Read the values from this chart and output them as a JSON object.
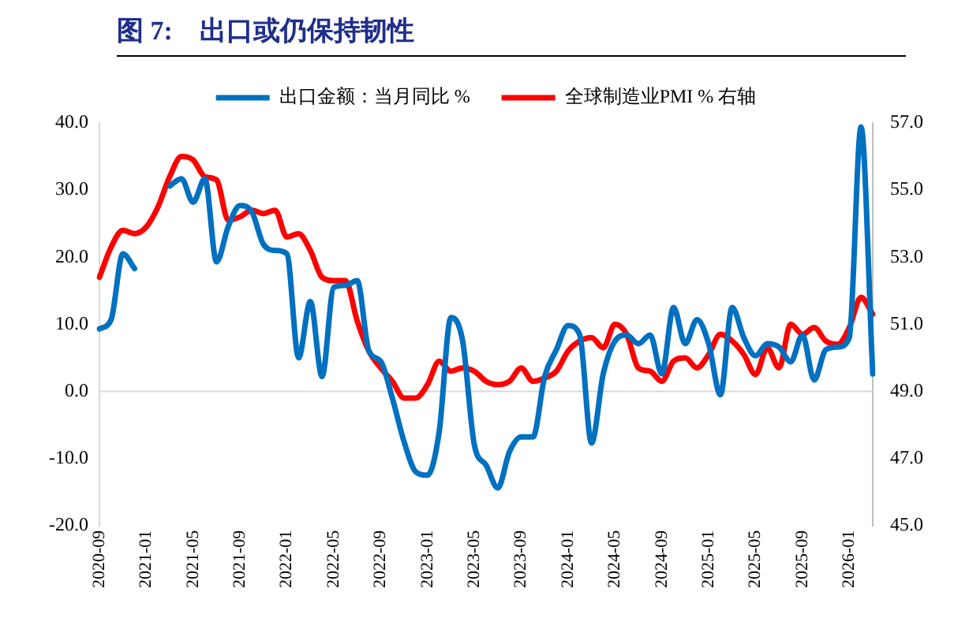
{
  "chart_data": {
    "type": "line",
    "title": "图 7:    出口或仍保持韧性",
    "categories": [
      "2020-09",
      null,
      null,
      null,
      "2021-01",
      null,
      null,
      null,
      "2021-05",
      null,
      null,
      null,
      "2021-09",
      null,
      null,
      null,
      "2022-01",
      null,
      null,
      null,
      "2022-05",
      null,
      null,
      null,
      "2022-09",
      null,
      null,
      null,
      "2023-01",
      null,
      null,
      null,
      "2023-05",
      null,
      null,
      null,
      "2023-09",
      null,
      null,
      null,
      "2024-01",
      null,
      null,
      null,
      "2024-05",
      null,
      null,
      null,
      "2024-09",
      null,
      null,
      null,
      "2025-01",
      null,
      null,
      null,
      "2025-05",
      null,
      null,
      null,
      "2025-09",
      null,
      null,
      null,
      "2026-01",
      null,
      null
    ],
    "series": [
      {
        "name": "出口金额：当月同比 %",
        "color": "#0070c0",
        "values": [
          9.3,
          10.7,
          20.5,
          18.3,
          null,
          null,
          30.6,
          31.7,
          28.2,
          31.7,
          19.3,
          24.6,
          27.7,
          26.8,
          21.9,
          21.0,
          20.5,
          5.0,
          13.4,
          2.2,
          15.5,
          15.8,
          16.5,
          6.0,
          4.5,
          -1.0,
          -7.5,
          -12.0,
          -12.5,
          -6.0,
          11.0,
          7.5,
          -8.0,
          -11.0,
          -14.4,
          -9.0,
          -6.8,
          -6.8,
          2.2,
          6.2,
          9.8,
          8.4,
          -7.7,
          2.6,
          7.5,
          8.4,
          7.1,
          8.4,
          2.6,
          12.5,
          7.1,
          10.7,
          7.1,
          -0.5,
          12.5,
          8.0,
          5.3,
          7.1,
          6.6,
          4.4,
          8.4,
          1.7,
          6.2,
          6.6,
          8.0,
          39.4,
          2.6
        ]
      },
      {
        "name": "全球制造业PMI % 右轴",
        "color": "#ff0000",
        "axis": "y2",
        "values": [
          52.4,
          53.3,
          53.8,
          53.7,
          53.9,
          54.5,
          55.4,
          56.0,
          55.9,
          55.4,
          55.3,
          54.1,
          54.2,
          54.4,
          54.3,
          54.4,
          53.6,
          53.7,
          53.2,
          52.4,
          52.3,
          52.3,
          51.1,
          50.2,
          49.7,
          49.3,
          48.8,
          48.8,
          49.2,
          49.9,
          49.6,
          49.7,
          49.6,
          49.3,
          49.2,
          49.3,
          49.7,
          49.3,
          49.4,
          49.6,
          50.2,
          50.5,
          50.6,
          50.3,
          51.0,
          50.7,
          49.7,
          49.6,
          49.3,
          49.9,
          50.0,
          49.7,
          50.1,
          50.7,
          50.5,
          50.1,
          49.5,
          50.3,
          49.7,
          51.0,
          50.7,
          50.9,
          50.5,
          50.4,
          50.9,
          51.8,
          51.3
        ]
      }
    ],
    "ylim": [
      -20,
      40
    ],
    "yticks": [
      {
        "value": -20,
        "label": "-20.0"
      },
      {
        "value": -10,
        "label": "-10.0"
      },
      {
        "value": 0,
        "label": "0.0"
      },
      {
        "value": 10,
        "label": "10.0"
      },
      {
        "value": 20,
        "label": "20.0"
      },
      {
        "value": 30,
        "label": "30.0"
      },
      {
        "value": 40,
        "label": "40.0"
      }
    ],
    "y2lim": [
      45,
      57
    ],
    "y2ticks": [
      {
        "value": 45,
        "label": "45.0"
      },
      {
        "value": 47,
        "label": "47.0"
      },
      {
        "value": 49,
        "label": "49.0"
      },
      {
        "value": 51,
        "label": "51.0"
      },
      {
        "value": 53,
        "label": "53.0"
      },
      {
        "value": 55,
        "label": "55.0"
      },
      {
        "value": 57,
        "label": "57.0"
      }
    ],
    "ref_lines": [
      {
        "axis": "y",
        "value": 0,
        "color": "#d9d9d9"
      }
    ],
    "legend": "top",
    "grid": false,
    "marker": "none",
    "line_style": "solid"
  }
}
